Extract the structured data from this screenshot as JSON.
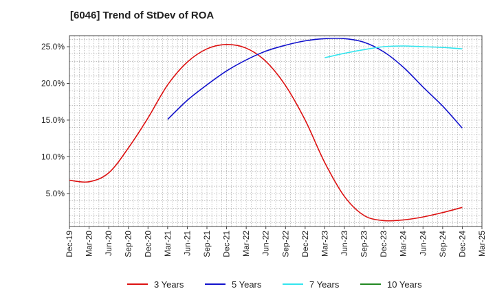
{
  "chart_data": {
    "type": "line",
    "title": "[6046]  Trend of StDev of ROA",
    "xlabel": "",
    "ylabel": "",
    "x_ticks": [
      "Dec-19",
      "Mar-20",
      "Jun-20",
      "Sep-20",
      "Dec-20",
      "Mar-21",
      "Jun-21",
      "Sep-21",
      "Dec-21",
      "Mar-22",
      "Jun-22",
      "Sep-22",
      "Dec-22",
      "Mar-23",
      "Jun-23",
      "Sep-23",
      "Dec-23",
      "Mar-24",
      "Jun-24",
      "Sep-24",
      "Dec-24",
      "Mar-25"
    ],
    "y_ticks": [
      "5.0%",
      "10.0%",
      "15.0%",
      "20.0%",
      "25.0%"
    ],
    "y_tick_values": [
      5,
      10,
      15,
      20,
      25
    ],
    "ylim": [
      0.5,
      26.5
    ],
    "grid": true,
    "legend_position": "bottom",
    "series": [
      {
        "name": "3 Years",
        "color": "#dd1111",
        "x_index": [
          0,
          1,
          2,
          3,
          4,
          5,
          6,
          7,
          8,
          9,
          10,
          11,
          12,
          13,
          14,
          15,
          16,
          17,
          18,
          19,
          20
        ],
        "values": [
          6.8,
          6.6,
          7.8,
          11.2,
          15.3,
          19.8,
          22.9,
          24.7,
          25.3,
          24.8,
          23.0,
          19.7,
          15.0,
          9.2,
          4.6,
          2.0,
          1.3,
          1.4,
          1.8,
          2.4,
          3.1
        ]
      },
      {
        "name": "5 Years",
        "color": "#1111cc",
        "x_index": [
          5,
          6,
          7,
          8,
          9,
          10,
          11,
          12,
          13,
          14,
          15,
          16,
          17,
          18,
          19,
          20
        ],
        "values": [
          15.1,
          17.7,
          19.8,
          21.7,
          23.2,
          24.4,
          25.2,
          25.8,
          26.1,
          26.1,
          25.6,
          24.3,
          22.2,
          19.5,
          16.9,
          13.9
        ]
      },
      {
        "name": "7 Years",
        "color": "#33e5ee",
        "x_index": [
          13,
          14,
          15,
          16,
          17,
          18,
          19,
          20
        ],
        "values": [
          23.5,
          24.1,
          24.6,
          25.0,
          25.1,
          25.0,
          24.9,
          24.7
        ]
      },
      {
        "name": "10 Years",
        "color": "#228822",
        "x_index": [],
        "values": []
      }
    ]
  }
}
